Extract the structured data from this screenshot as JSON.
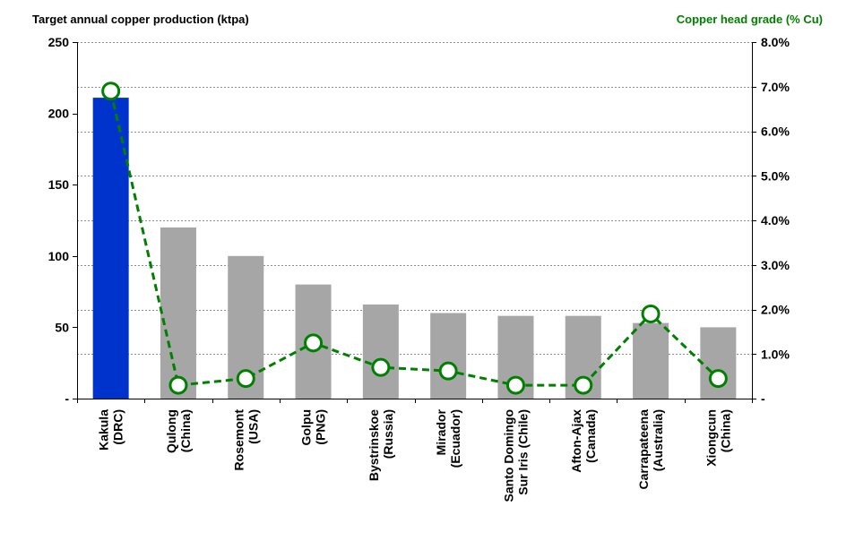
{
  "chart_data": {
    "type": "bar",
    "categories": [
      [
        "Kakula",
        "(DRC)"
      ],
      [
        "Qulong",
        "(China)"
      ],
      [
        "Rosemont",
        "(USA)"
      ],
      [
        "Golpu",
        "(PNG)"
      ],
      [
        "Bystrinskoe",
        "(Russia)"
      ],
      [
        "Mirador",
        "(Ecuador)"
      ],
      [
        "Santo Domingo",
        "Sur Iris (Chile)"
      ],
      [
        "Afton-Ajax",
        "(Canada)"
      ],
      [
        "Carrapateena",
        "(Australia)"
      ],
      [
        "Xiongcun",
        "(China)"
      ]
    ],
    "series": [
      {
        "type": "bar",
        "axis": "left",
        "values": [
          211,
          120,
          100,
          80,
          66,
          60,
          58,
          58,
          53,
          50
        ],
        "colors": [
          "#0033cc",
          "#a6a6a6",
          "#a6a6a6",
          "#a6a6a6",
          "#a6a6a6",
          "#a6a6a6",
          "#a6a6a6",
          "#a6a6a6",
          "#a6a6a6",
          "#a6a6a6"
        ]
      },
      {
        "type": "line",
        "axis": "right",
        "values": [
          6.9,
          0.3,
          0.45,
          1.25,
          0.7,
          0.62,
          0.3,
          0.3,
          1.9,
          0.45
        ],
        "color": "#008000",
        "dashed": true,
        "marker": "hollow-circle"
      }
    ],
    "ylabel": "Target annual copper production (ktpa)",
    "y2label": "Copper head grade (% Cu)",
    "ylim": [
      0,
      250
    ],
    "y2lim": [
      0,
      8
    ],
    "yticks": [
      {
        "v": 0,
        "label": "-"
      },
      {
        "v": 50,
        "label": "50"
      },
      {
        "v": 100,
        "label": "100"
      },
      {
        "v": 150,
        "label": "150"
      },
      {
        "v": 200,
        "label": "200"
      },
      {
        "v": 250,
        "label": "250"
      }
    ],
    "y2ticks": [
      {
        "v": 0,
        "label": "-"
      },
      {
        "v": 1,
        "label": "1.0%"
      },
      {
        "v": 2,
        "label": "2.0%"
      },
      {
        "v": 3,
        "label": "3.0%"
      },
      {
        "v": 4,
        "label": "4.0%"
      },
      {
        "v": 5,
        "label": "5.0%"
      },
      {
        "v": 6,
        "label": "6.0%"
      },
      {
        "v": 7,
        "label": "7.0%"
      },
      {
        "v": 8,
        "label": "8.0%"
      }
    ],
    "grid": true,
    "accent_left": "#000000",
    "accent_right": "#008000"
  }
}
